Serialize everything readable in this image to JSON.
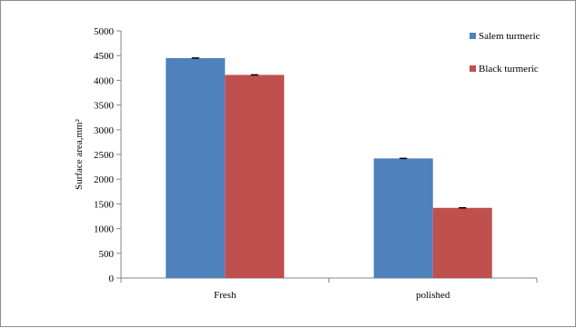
{
  "chart_data": {
    "type": "bar",
    "categories": [
      "Fresh",
      "polished"
    ],
    "series": [
      {
        "name": "Salem turmeric",
        "values": [
          4450,
          2420
        ],
        "error": [
          5,
          5
        ]
      },
      {
        "name": "Black turmeric",
        "values": [
          4110,
          1420
        ],
        "error": [
          5,
          5
        ]
      }
    ],
    "ylabel": "Surface area,mm²",
    "ylim": [
      0,
      5000
    ],
    "yticks": [
      0,
      500,
      1000,
      1500,
      2000,
      2500,
      3000,
      3500,
      4000,
      4500,
      5000
    ],
    "grid": false,
    "legend_position": "top-right",
    "colors": {
      "Salem turmeric": "#4f81bd",
      "Black turmeric": "#c0504d"
    }
  }
}
